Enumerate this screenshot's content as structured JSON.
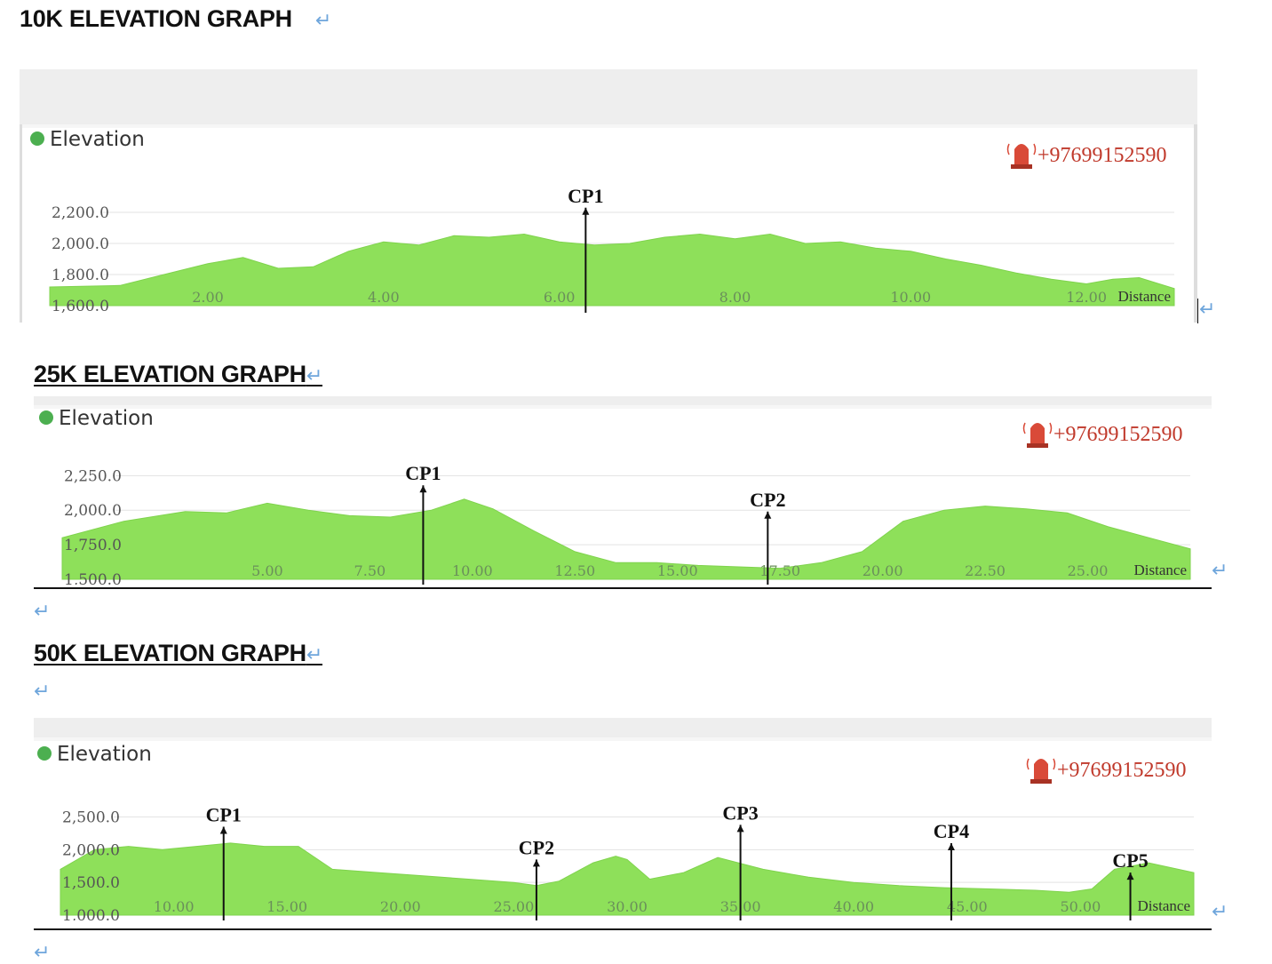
{
  "headings": {
    "h10k": "10K ELEVATION GRAPH",
    "h25k": "25K ELEVATION GRAPH",
    "h50k": "50K ELEVATION GRAPH"
  },
  "paragraph_mark": "↵",
  "colors": {
    "fill": "#8ee05a",
    "legend_dot": "#4caf50",
    "phone": "#c0392b",
    "alarm": "#d94a38",
    "grid": "#e3e3e3",
    "axis_text": "#555555",
    "top_band": "#eeeeee"
  },
  "chart_data": [
    {
      "type": "area",
      "legend": "Elevation",
      "legend_position": "top-left",
      "phone": "+97699152590",
      "xlabel": "Distance",
      "xlim": [
        0.2,
        13.0
      ],
      "ylim": [
        1600,
        2400
      ],
      "yticks": [
        "2,200.0",
        "2,000.0",
        "1,800.0",
        "1,600.0"
      ],
      "ytick_values": [
        2200,
        2000,
        1800,
        1600
      ],
      "xticks": [
        "2.00",
        "4.00",
        "6.00",
        "8.00",
        "10.00",
        "12.00"
      ],
      "xtick_values": [
        2,
        4,
        6,
        8,
        10,
        12
      ],
      "grid": true,
      "x": [
        0.2,
        1.0,
        1.5,
        2.0,
        2.4,
        2.8,
        3.2,
        3.6,
        4.0,
        4.4,
        4.8,
        5.2,
        5.6,
        6.0,
        6.4,
        6.8,
        7.2,
        7.6,
        8.0,
        8.4,
        8.8,
        9.2,
        9.6,
        10.0,
        10.4,
        10.8,
        11.2,
        11.6,
        12.0,
        12.3,
        12.6,
        13.0
      ],
      "values": [
        1720,
        1730,
        1800,
        1870,
        1910,
        1840,
        1850,
        1950,
        2010,
        1990,
        2050,
        2040,
        2060,
        2010,
        1990,
        2000,
        2040,
        2060,
        2030,
        2060,
        2000,
        2010,
        1970,
        1950,
        1900,
        1860,
        1810,
        1770,
        1740,
        1770,
        1780,
        1710
      ],
      "checkpoints": [
        {
          "label": "CP1",
          "x": 6.3,
          "y": 2230
        }
      ]
    },
    {
      "type": "area",
      "legend": "Elevation",
      "legend_position": "top-left",
      "phone": "+97699152590",
      "xlabel": "Distance",
      "xlim": [
        0.0,
        27.5
      ],
      "ylim": [
        1500,
        2400
      ],
      "yticks": [
        "2,250.0",
        "2,000.0",
        "1,750.0",
        "1,500.0"
      ],
      "ytick_values": [
        2250,
        2000,
        1750,
        1500
      ],
      "xticks": [
        "5.00",
        "7.50",
        "10.00",
        "12.50",
        "15.00",
        "17.50",
        "20.00",
        "22.50",
        "25.00"
      ],
      "xtick_values": [
        5,
        7.5,
        10,
        12.5,
        15,
        17.5,
        20,
        22.5,
        25
      ],
      "grid": true,
      "x": [
        0.0,
        1.5,
        3.0,
        4.0,
        5.0,
        6.0,
        7.0,
        8.0,
        9.0,
        9.8,
        10.5,
        11.5,
        12.5,
        13.5,
        14.5,
        15.5,
        16.5,
        17.5,
        18.5,
        19.5,
        20.5,
        21.5,
        22.5,
        23.5,
        24.5,
        25.5,
        26.5,
        27.5
      ],
      "values": [
        1800,
        1920,
        1990,
        1980,
        2050,
        2000,
        1960,
        1950,
        2000,
        2080,
        2010,
        1850,
        1700,
        1620,
        1620,
        1600,
        1590,
        1580,
        1620,
        1700,
        1920,
        2000,
        2030,
        2010,
        1980,
        1880,
        1800,
        1720
      ],
      "checkpoints": [
        {
          "label": "CP1",
          "x": 8.8,
          "y": 2180
        },
        {
          "label": "CP2",
          "x": 17.2,
          "y": 1990
        }
      ]
    },
    {
      "type": "area",
      "legend": "Elevation",
      "legend_position": "top-left",
      "phone": "+97699152590",
      "xlabel": "Distance",
      "xlim": [
        5.0,
        55.0
      ],
      "ylim": [
        1000,
        2900
      ],
      "yticks": [
        "2,500.0",
        "2,000.0",
        "1,500.0",
        "1,000.0"
      ],
      "ytick_values": [
        2500,
        2000,
        1500,
        1000
      ],
      "xticks": [
        "10.00",
        "15.00",
        "20.00",
        "25.00",
        "30.00",
        "35.00",
        "40.00",
        "45.00",
        "50.00"
      ],
      "xtick_values": [
        10,
        15,
        20,
        25,
        30,
        35,
        40,
        45,
        50
      ],
      "grid": true,
      "x": [
        5.0,
        6.5,
        8.0,
        9.5,
        11.0,
        12.5,
        14.0,
        15.5,
        17.0,
        19.0,
        21.0,
        23.0,
        25.0,
        26.0,
        27.0,
        28.5,
        29.5,
        30.0,
        31.0,
        32.5,
        34.0,
        36.0,
        38.0,
        40.0,
        42.0,
        44.0,
        46.0,
        48.0,
        49.5,
        50.5,
        51.5,
        53.0,
        55.0
      ],
      "values": [
        1700,
        2000,
        2050,
        2000,
        2050,
        2100,
        2050,
        2050,
        1700,
        1650,
        1600,
        1550,
        1500,
        1450,
        1520,
        1800,
        1900,
        1850,
        1550,
        1650,
        1880,
        1700,
        1580,
        1500,
        1450,
        1420,
        1400,
        1380,
        1350,
        1400,
        1700,
        1800,
        1650
      ],
      "checkpoints": [
        {
          "label": "CP1",
          "x": 12.2,
          "y": 2350
        },
        {
          "label": "CP2",
          "x": 26.0,
          "y": 1850
        },
        {
          "label": "CP3",
          "x": 35.0,
          "y": 2380
        },
        {
          "label": "CP4",
          "x": 44.3,
          "y": 2100
        },
        {
          "label": "CP5",
          "x": 52.2,
          "y": 1650
        }
      ]
    }
  ]
}
